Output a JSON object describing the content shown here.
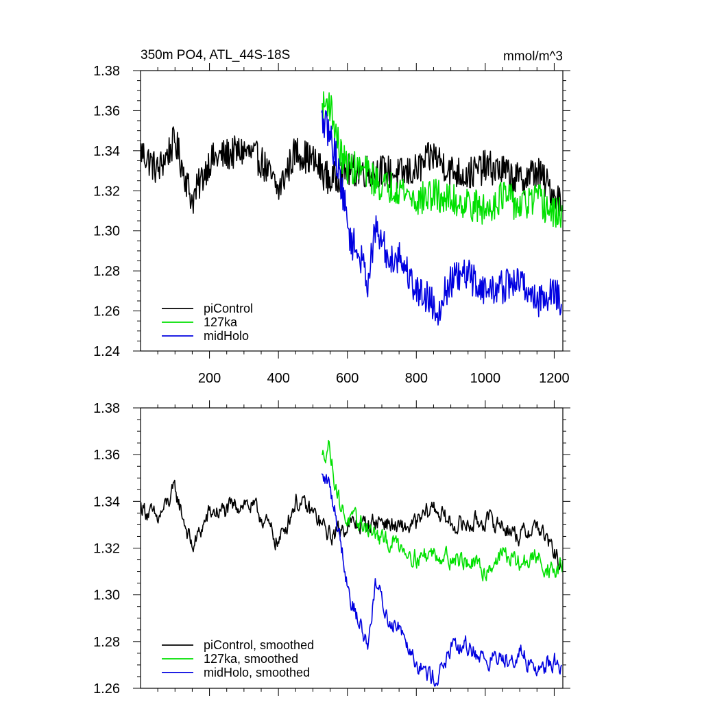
{
  "figure": {
    "title": "350m PO4, ATL_44S-18S",
    "units": "mmol/m^3"
  },
  "colors": {
    "piControl": "#000000",
    "127ka": "#00e000",
    "midHolo": "#0000e0"
  },
  "chart_data": [
    {
      "type": "line",
      "title": "350m PO4, ATL_44S-18S",
      "units_label": "mmol/m^3",
      "xlabel": "",
      "ylabel": "",
      "xlim": [
        0,
        1225
      ],
      "ylim": [
        1.24,
        1.38
      ],
      "x_ticks": [
        200,
        400,
        600,
        800,
        1000,
        1200
      ],
      "x_tick_labels": [
        "200",
        "400",
        "600",
        "800",
        "1000",
        "1200"
      ],
      "y_ticks": [
        1.24,
        1.26,
        1.28,
        1.3,
        1.32,
        1.34,
        1.36,
        1.38
      ],
      "y_tick_labels": [
        "1.24",
        "1.26",
        "1.28",
        "1.30",
        "1.32",
        "1.34",
        "1.36",
        "1.38"
      ],
      "legend_position": "bottom-left",
      "series": [
        {
          "name": "piControl",
          "color": "#000000",
          "x": [
            1,
            50,
            100,
            150,
            200,
            250,
            300,
            350,
            400,
            450,
            500,
            550,
            600,
            650,
            700,
            750,
            800,
            850,
            900,
            950,
            1000,
            1050,
            1100,
            1150,
            1200,
            1220
          ],
          "y": [
            1.34,
            1.33,
            1.345,
            1.315,
            1.335,
            1.338,
            1.34,
            1.335,
            1.32,
            1.34,
            1.335,
            1.325,
            1.33,
            1.33,
            1.33,
            1.328,
            1.33,
            1.338,
            1.33,
            1.328,
            1.332,
            1.33,
            1.325,
            1.33,
            1.318,
            1.315
          ]
        },
        {
          "name": "127ka",
          "color": "#00e000",
          "x": [
            527,
            545,
            560,
            580,
            600,
            650,
            700,
            750,
            800,
            850,
            900,
            950,
            1000,
            1050,
            1100,
            1150,
            1200,
            1225
          ],
          "y": [
            1.36,
            1.366,
            1.355,
            1.338,
            1.332,
            1.33,
            1.322,
            1.322,
            1.315,
            1.318,
            1.315,
            1.314,
            1.31,
            1.318,
            1.312,
            1.316,
            1.308,
            1.31
          ]
        },
        {
          "name": "midHolo",
          "color": "#0000e0",
          "x": [
            525,
            545,
            570,
            590,
            600,
            610,
            630,
            650,
            660,
            680,
            700,
            720,
            750,
            800,
            830,
            860,
            900,
            950,
            1000,
            1050,
            1100,
            1150,
            1200,
            1222
          ],
          "y": [
            1.355,
            1.35,
            1.335,
            1.315,
            1.305,
            1.295,
            1.29,
            1.28,
            1.275,
            1.3,
            1.295,
            1.285,
            1.288,
            1.27,
            1.268,
            1.26,
            1.275,
            1.278,
            1.27,
            1.272,
            1.275,
            1.265,
            1.27,
            1.265
          ]
        }
      ],
      "legend": [
        "piControl",
        "127ka",
        "midHolo"
      ]
    },
    {
      "type": "line",
      "title": "",
      "xlabel": "",
      "ylabel": "",
      "xlim": [
        0,
        1225
      ],
      "ylim": [
        1.26,
        1.38
      ],
      "x_ticks": [
        200,
        400,
        600,
        800,
        1000,
        1200
      ],
      "x_tick_labels": [],
      "y_ticks": [
        1.26,
        1.28,
        1.3,
        1.32,
        1.34,
        1.36,
        1.38
      ],
      "y_tick_labels": [
        "1.26",
        "1.28",
        "1.30",
        "1.32",
        "1.34",
        "1.36",
        "1.38"
      ],
      "legend_position": "bottom-left",
      "series": [
        {
          "name": "piControl, smoothed",
          "color": "#000000",
          "x": [
            1,
            50,
            100,
            150,
            200,
            250,
            300,
            350,
            400,
            450,
            500,
            550,
            600,
            650,
            700,
            750,
            800,
            850,
            900,
            950,
            1000,
            1050,
            1100,
            1150,
            1200,
            1220
          ],
          "y": [
            1.338,
            1.332,
            1.345,
            1.32,
            1.335,
            1.336,
            1.34,
            1.334,
            1.322,
            1.34,
            1.335,
            1.325,
            1.33,
            1.33,
            1.332,
            1.328,
            1.33,
            1.338,
            1.33,
            1.33,
            1.332,
            1.33,
            1.325,
            1.33,
            1.318,
            1.313
          ]
        },
        {
          "name": "127ka, smoothed",
          "color": "#00e000",
          "x": [
            527,
            545,
            560,
            580,
            600,
            650,
            700,
            750,
            800,
            850,
            900,
            950,
            1000,
            1050,
            1100,
            1150,
            1200,
            1225
          ],
          "y": [
            1.358,
            1.365,
            1.352,
            1.338,
            1.332,
            1.33,
            1.323,
            1.322,
            1.316,
            1.318,
            1.316,
            1.314,
            1.31,
            1.318,
            1.313,
            1.316,
            1.309,
            1.313
          ]
        },
        {
          "name": "midHolo, smoothed",
          "color": "#0000e0",
          "x": [
            525,
            545,
            570,
            590,
            600,
            610,
            630,
            650,
            660,
            680,
            700,
            720,
            750,
            800,
            830,
            860,
            900,
            950,
            1000,
            1050,
            1100,
            1150,
            1200,
            1222
          ],
          "y": [
            1.35,
            1.348,
            1.332,
            1.315,
            1.305,
            1.298,
            1.29,
            1.282,
            1.278,
            1.305,
            1.298,
            1.288,
            1.288,
            1.272,
            1.266,
            1.265,
            1.276,
            1.278,
            1.272,
            1.273,
            1.275,
            1.268,
            1.272,
            1.266
          ]
        }
      ],
      "legend": [
        "piControl, smoothed",
        "127ka, smoothed",
        "midHolo, smoothed"
      ]
    }
  ]
}
